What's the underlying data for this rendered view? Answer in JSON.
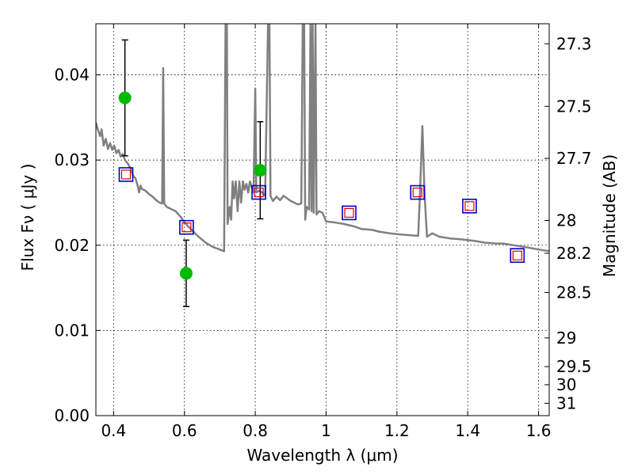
{
  "chart_data": {
    "type": "scatter",
    "title": "",
    "xlabel": "Wavelength  λ (μm)",
    "ylabel": "Flux  Fν  ( μJy )",
    "ylabel_right": "Magnitude (AB)",
    "xlim": [
      0.35,
      1.63
    ],
    "ylim": [
      0.0,
      0.046
    ],
    "grid": true,
    "x_ticks": [
      {
        "value": 0.4,
        "label": "0.4"
      },
      {
        "value": 0.6,
        "label": "0.6"
      },
      {
        "value": 0.8,
        "label": "0.8"
      },
      {
        "value": 1.0,
        "label": "1"
      },
      {
        "value": 1.2,
        "label": "1.2"
      },
      {
        "value": 1.4,
        "label": "1.4"
      },
      {
        "value": 1.6,
        "label": "1.6"
      }
    ],
    "y_ticks": [
      {
        "value": 0.0,
        "label": "0.00"
      },
      {
        "value": 0.01,
        "label": "0.01"
      },
      {
        "value": 0.02,
        "label": "0.02"
      },
      {
        "value": 0.03,
        "label": "0.03"
      },
      {
        "value": 0.04,
        "label": "0.04"
      }
    ],
    "mag_ticks": [
      {
        "value": 27.3,
        "label": "27.3"
      },
      {
        "value": 27.5,
        "label": "27.5"
      },
      {
        "value": 27.7,
        "label": "27.7"
      },
      {
        "value": 28.0,
        "label": "28"
      },
      {
        "value": 28.2,
        "label": "28.2"
      },
      {
        "value": 28.5,
        "label": "28.5"
      },
      {
        "value": 29.0,
        "label": "29"
      },
      {
        "value": 29.5,
        "label": "29.5"
      },
      {
        "value": 30.0,
        "label": "30"
      },
      {
        "value": 31.0,
        "label": "31"
      }
    ],
    "colors": {
      "model": "#808080",
      "observed": "#00bb00",
      "errorbar": "#000000",
      "model_phot_outer": "#0000cc",
      "model_phot_inner": "#dd0000"
    },
    "series": [
      {
        "name": "model_spectrum",
        "kind": "line",
        "points": [
          [
            0.35,
            0.0344
          ],
          [
            0.356,
            0.0335
          ],
          [
            0.362,
            0.0328
          ],
          [
            0.366,
            0.0336
          ],
          [
            0.372,
            0.0317
          ],
          [
            0.378,
            0.0325
          ],
          [
            0.384,
            0.0313
          ],
          [
            0.39,
            0.032
          ],
          [
            0.396,
            0.0312
          ],
          [
            0.402,
            0.0317
          ],
          [
            0.408,
            0.0308
          ],
          [
            0.414,
            0.0312
          ],
          [
            0.42,
            0.0304
          ],
          [
            0.426,
            0.0307
          ],
          [
            0.432,
            0.03
          ],
          [
            0.44,
            0.0296
          ],
          [
            0.448,
            0.029
          ],
          [
            0.455,
            0.0282
          ],
          [
            0.462,
            0.0278
          ],
          [
            0.468,
            0.027
          ],
          [
            0.472,
            0.0262
          ],
          [
            0.476,
            0.027
          ],
          [
            0.48,
            0.0266
          ],
          [
            0.49,
            0.0264
          ],
          [
            0.5,
            0.026
          ],
          [
            0.51,
            0.0257
          ],
          [
            0.52,
            0.0253
          ],
          [
            0.53,
            0.025
          ],
          [
            0.537,
            0.0249
          ],
          [
            0.54,
            0.0408
          ],
          [
            0.543,
            0.0249
          ],
          [
            0.55,
            0.0245
          ],
          [
            0.56,
            0.0243
          ],
          [
            0.575,
            0.024
          ],
          [
            0.59,
            0.0233
          ],
          [
            0.6,
            0.0227
          ],
          [
            0.62,
            0.0218
          ],
          [
            0.64,
            0.021
          ],
          [
            0.66,
            0.0203
          ],
          [
            0.68,
            0.0198
          ],
          [
            0.7,
            0.0195
          ],
          [
            0.712,
            0.0193
          ],
          [
            0.716,
            0.046
          ],
          [
            0.72,
            0.046
          ],
          [
            0.722,
            0.0225
          ],
          [
            0.728,
            0.0245
          ],
          [
            0.732,
            0.023
          ],
          [
            0.736,
            0.0275
          ],
          [
            0.74,
            0.0255
          ],
          [
            0.745,
            0.0275
          ],
          [
            0.75,
            0.024
          ],
          [
            0.755,
            0.0275
          ],
          [
            0.76,
            0.025
          ],
          [
            0.765,
            0.0275
          ],
          [
            0.77,
            0.0265
          ],
          [
            0.775,
            0.0272
          ],
          [
            0.78,
            0.0262
          ],
          [
            0.785,
            0.0275
          ],
          [
            0.79,
            0.0268
          ],
          [
            0.795,
            0.0262
          ],
          [
            0.8,
            0.0384
          ],
          [
            0.803,
            0.0262
          ],
          [
            0.81,
            0.0264
          ],
          [
            0.82,
            0.0262
          ],
          [
            0.828,
            0.0258
          ],
          [
            0.836,
            0.046
          ],
          [
            0.84,
            0.046
          ],
          [
            0.843,
            0.0258
          ],
          [
            0.85,
            0.0252
          ],
          [
            0.86,
            0.0257
          ],
          [
            0.87,
            0.0253
          ],
          [
            0.88,
            0.0258
          ],
          [
            0.89,
            0.0255
          ],
          [
            0.9,
            0.0252
          ],
          [
            0.91,
            0.025
          ],
          [
            0.92,
            0.0248
          ],
          [
            0.93,
            0.0249
          ],
          [
            0.934,
            0.046
          ],
          [
            0.938,
            0.046
          ],
          [
            0.941,
            0.023
          ],
          [
            0.945,
            0.0245
          ],
          [
            0.952,
            0.0242
          ],
          [
            0.956,
            0.046
          ],
          [
            0.959,
            0.024
          ],
          [
            0.962,
            0.046
          ],
          [
            0.965,
            0.0238
          ],
          [
            0.97,
            0.046
          ],
          [
            0.973,
            0.0236
          ],
          [
            0.98,
            0.024
          ],
          [
            0.99,
            0.0238
          ],
          [
            1.0,
            0.0228
          ],
          [
            1.02,
            0.0227
          ],
          [
            1.05,
            0.0225
          ],
          [
            1.08,
            0.0222
          ],
          [
            1.1,
            0.0219
          ],
          [
            1.13,
            0.0218
          ],
          [
            1.15,
            0.0216
          ],
          [
            1.18,
            0.0214
          ],
          [
            1.2,
            0.0213
          ],
          [
            1.23,
            0.0212
          ],
          [
            1.26,
            0.0211
          ],
          [
            1.265,
            0.026
          ],
          [
            1.272,
            0.034
          ],
          [
            1.278,
            0.026
          ],
          [
            1.285,
            0.021
          ],
          [
            1.3,
            0.0214
          ],
          [
            1.32,
            0.021
          ],
          [
            1.35,
            0.0208
          ],
          [
            1.38,
            0.0207
          ],
          [
            1.42,
            0.0205
          ],
          [
            1.45,
            0.0203
          ],
          [
            1.48,
            0.0202
          ],
          [
            1.5,
            0.0202
          ],
          [
            1.53,
            0.02
          ],
          [
            1.56,
            0.0198
          ],
          [
            1.6,
            0.0195
          ],
          [
            1.63,
            0.0193
          ]
        ]
      },
      {
        "name": "observed",
        "kind": "errorbar",
        "points": [
          {
            "x": 0.432,
            "y": 0.0373,
            "yerr": [
              0.0305,
              0.0441
            ]
          },
          {
            "x": 0.605,
            "y": 0.0167,
            "yerr": [
              0.0128,
              0.0206
            ]
          },
          {
            "x": 0.814,
            "y": 0.0288,
            "yerr": [
              0.0231,
              0.0345
            ]
          }
        ]
      },
      {
        "name": "model_photometry",
        "kind": "square",
        "points": [
          {
            "x": 0.435,
            "y": 0.0283
          },
          {
            "x": 0.606,
            "y": 0.0221
          },
          {
            "x": 0.81,
            "y": 0.0262
          },
          {
            "x": 1.065,
            "y": 0.0238
          },
          {
            "x": 1.258,
            "y": 0.0262
          },
          {
            "x": 1.405,
            "y": 0.0246
          },
          {
            "x": 1.54,
            "y": 0.0188
          }
        ]
      }
    ]
  }
}
